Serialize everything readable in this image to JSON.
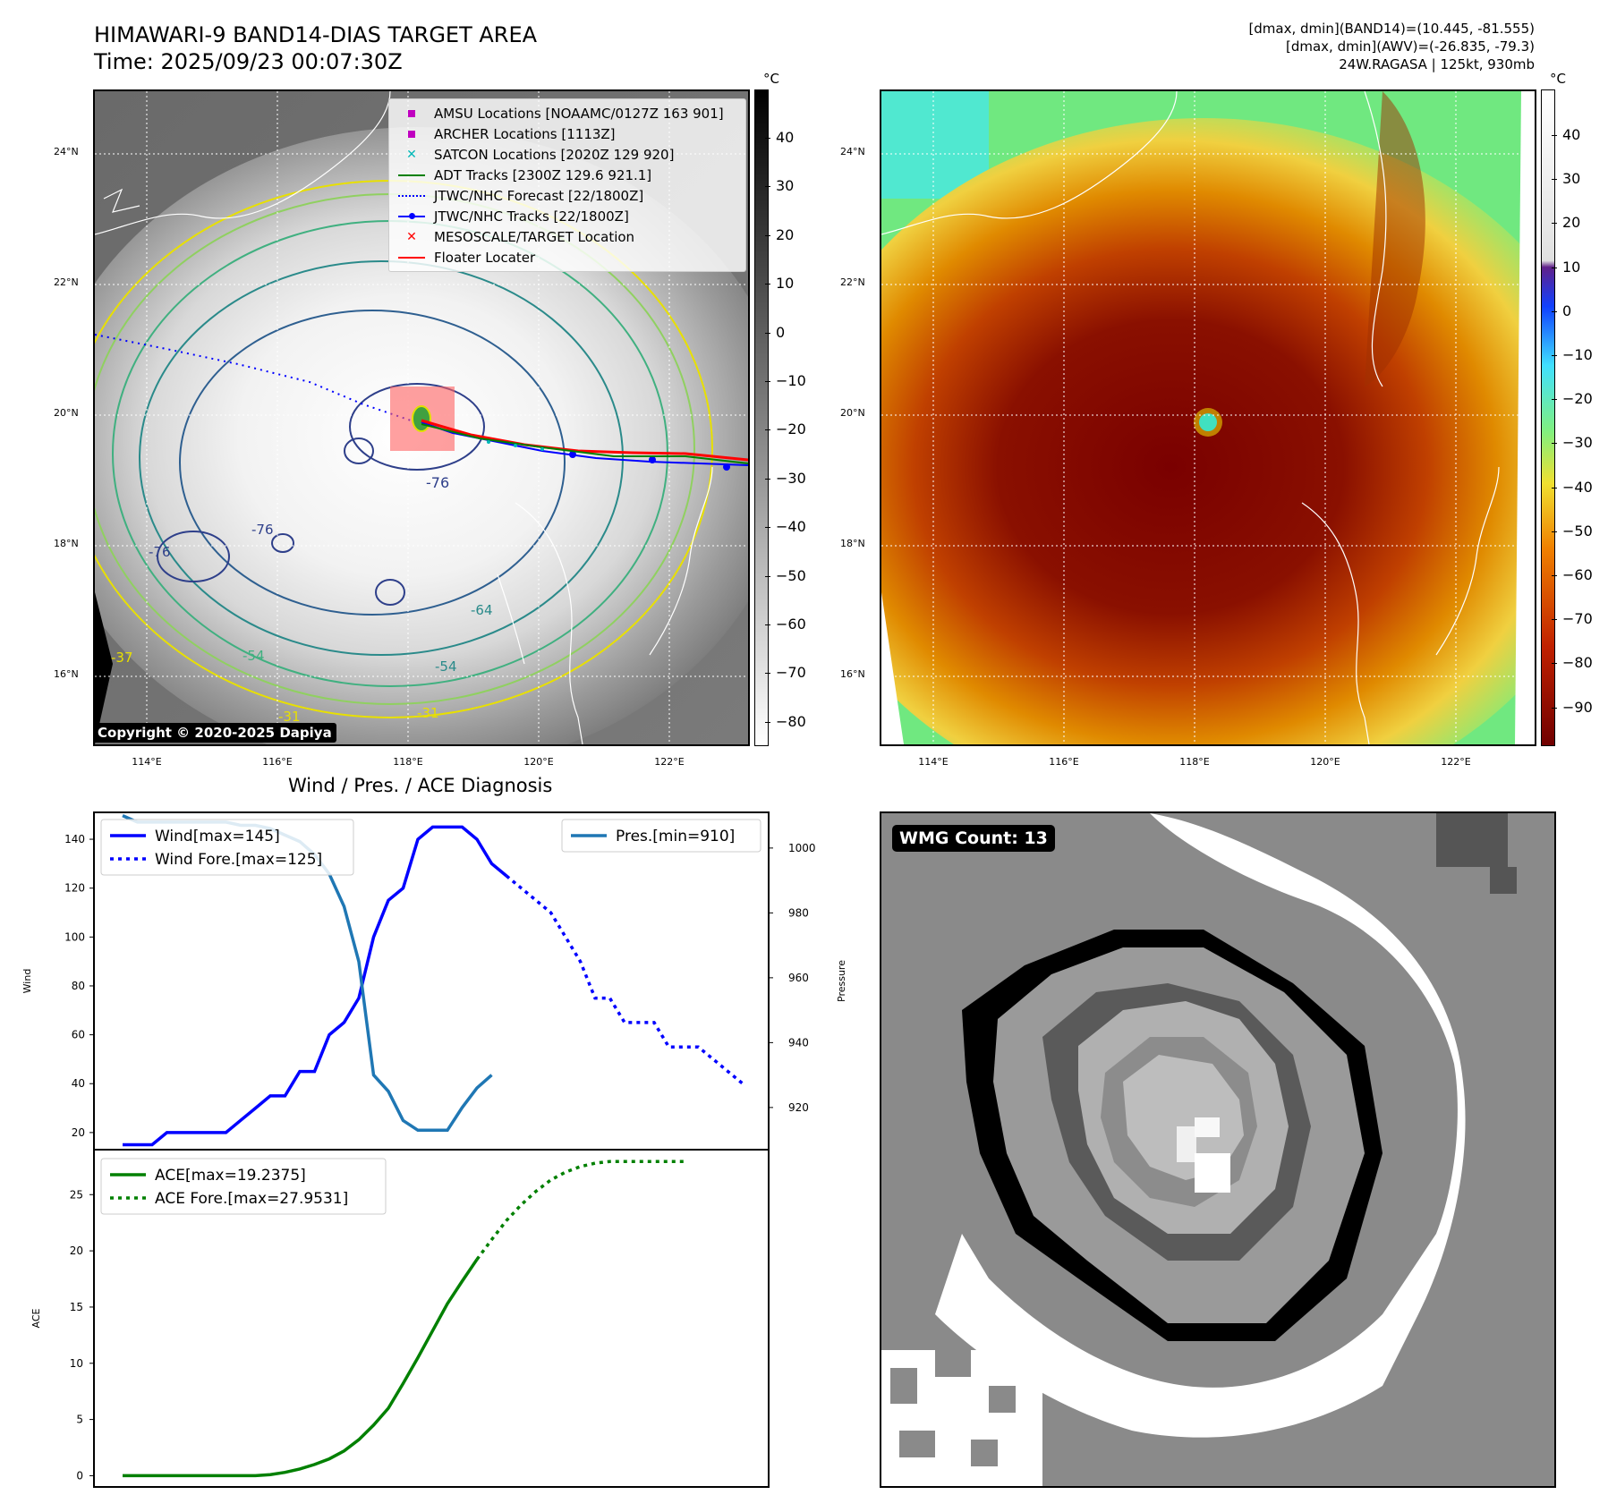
{
  "header": {
    "title_line1": "HIMAWARI-9 BAND14-DIAS TARGET AREA",
    "title_line2": "Time: 2025/09/23 00:07:30Z",
    "info_line1": "[dmax, dmin](BAND14)=(10.445, -81.555)",
    "info_line2": "[dmax, dmin](AWV)=(-26.835, -79.3)",
    "info_line3": "24W.RAGASA | 125kt, 930mb"
  },
  "map": {
    "lat_labels": [
      "24°N",
      "22°N",
      "20°N",
      "18°N",
      "16°N"
    ],
    "lon_labels": [
      "114°E",
      "116°E",
      "118°E",
      "120°E",
      "122°E"
    ],
    "contour_labels": [
      "-76",
      "-76",
      "-76",
      "-64",
      "-54",
      "-54",
      "-31",
      "-37",
      "-31"
    ],
    "copyright": "Copyright © 2020-2025 Dapiya",
    "legend": [
      {
        "label": "AMSU Locations [NOAAMC/0127Z 163 901]",
        "symbol": "square",
        "color": "#c000c0"
      },
      {
        "label": "ARCHER Locations [1113Z]",
        "symbol": "square",
        "color": "#c000c0"
      },
      {
        "label": "SATCON Locations [2020Z 129 920]",
        "symbol": "x",
        "color": "#00b8b8"
      },
      {
        "label": "ADT Tracks [2300Z 129.6 921.1]",
        "symbol": "line",
        "color": "#008000"
      },
      {
        "label": "JTWC/NHC Forecast [22/1800Z]",
        "symbol": "dotted",
        "color": "#0000ff"
      },
      {
        "label": "JTWC/NHC Tracks [22/1800Z]",
        "symbol": "line-dot",
        "color": "#0000ff"
      },
      {
        "label": "MESOSCALE/TARGET Location",
        "symbol": "x",
        "color": "#ff0000"
      },
      {
        "label": "Floater Locater",
        "symbol": "line",
        "color": "#ff0000"
      }
    ]
  },
  "colorbar_gray": {
    "unit": "°C",
    "ticks": [
      "40",
      "30",
      "20",
      "10",
      "0",
      "−10",
      "−20",
      "−30",
      "−40",
      "−50",
      "−60",
      "−70",
      "−80"
    ]
  },
  "colorbar_color": {
    "unit": "°C",
    "ticks": [
      "40",
      "30",
      "20",
      "10",
      "0",
      "−10",
      "−20",
      "−30",
      "−40",
      "−50",
      "−60",
      "−70",
      "−80",
      "−90"
    ]
  },
  "wmg": {
    "badge": "WMG Count: 13"
  },
  "chart_data": [
    {
      "type": "line",
      "title": "Wind / Pres. / ACE Diagnosis",
      "ylabel": "Wind",
      "y2label": "Pressure",
      "ylim": [
        13,
        151
      ],
      "y2lim": [
        907,
        1011
      ],
      "yticks": [
        20,
        40,
        60,
        80,
        100,
        120,
        140
      ],
      "y2ticks": [
        920,
        940,
        960,
        980,
        1000
      ],
      "series": [
        {
          "name": "Wind[max=145]",
          "color": "#0000ff",
          "style": "solid",
          "values": [
            15,
            15,
            15,
            20,
            20,
            20,
            20,
            20,
            25,
            30,
            35,
            35,
            45,
            45,
            60,
            65,
            75,
            100,
            115,
            120,
            140,
            145,
            145,
            145,
            140,
            130,
            125
          ]
        },
        {
          "name": "Wind Fore.[max=125]",
          "color": "#0000ff",
          "style": "dotted",
          "values": [
            125,
            120,
            115,
            110,
            100,
            90,
            75,
            75,
            65,
            65,
            65,
            55,
            55,
            55,
            50,
            45,
            40
          ]
        },
        {
          "name": "Pres.[min=910]",
          "color": "#1f77b4",
          "style": "solid",
          "axis": "right",
          "values": [
            1010,
            1008,
            1008,
            1008,
            1008,
            1008,
            1008,
            1008,
            1007,
            1007,
            1006,
            1004,
            1002,
            998,
            992,
            982,
            965,
            930,
            925,
            916,
            913,
            913,
            913,
            920,
            926,
            930
          ]
        }
      ]
    },
    {
      "type": "line",
      "ylabel": "ACE",
      "ylim": [
        -1,
        29
      ],
      "yticks": [
        0,
        5,
        10,
        15,
        20,
        25
      ],
      "series": [
        {
          "name": "ACE[max=19.2375]",
          "color": "#008000",
          "style": "solid",
          "values": [
            0,
            0,
            0,
            0,
            0,
            0,
            0,
            0,
            0,
            0,
            0.1,
            0.3,
            0.6,
            1.0,
            1.5,
            2.2,
            3.2,
            4.5,
            6.0,
            8.2,
            10.5,
            12.9,
            15.3,
            17.3,
            19.2375
          ]
        },
        {
          "name": "ACE Fore.[max=27.9531]",
          "color": "#008000",
          "style": "dotted",
          "values": [
            19.2375,
            21.0,
            22.7,
            24.1,
            25.3,
            26.3,
            27.0,
            27.5,
            27.8,
            27.95,
            27.95,
            27.95,
            27.95,
            27.95,
            27.9531
          ]
        }
      ]
    }
  ]
}
